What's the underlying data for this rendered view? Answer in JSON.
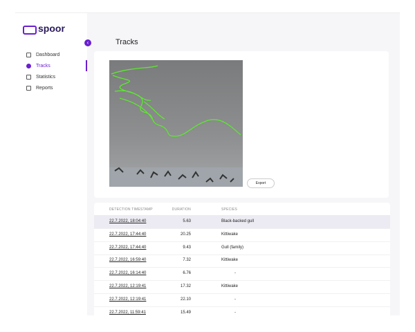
{
  "sidebar": {
    "logo": "spoor",
    "nav": [
      "Dashboard",
      "Tracks",
      "Statistics",
      "Reports"
    ]
  },
  "header": {
    "title": "Tracks"
  },
  "preview": {
    "button": "Export"
  },
  "table": {
    "columns": [
      "DETECTION TIMESTAMP",
      "DURATION",
      "SPECIES"
    ],
    "rows": [
      [
        "22.7.2022, 18:04:40",
        "5.63",
        "Black-backed gull"
      ],
      [
        "22.7.2022, 17:44:40",
        "20.25",
        "Kittiwake"
      ],
      [
        "22.7.2022, 17:44:40",
        "9.43",
        "Gull (family)"
      ],
      [
        "22.7.2022, 16:59:40",
        "7.32",
        "Kittiwake"
      ],
      [
        "22.7.2022, 16:14:40",
        "6.76",
        "-"
      ],
      [
        "22.7.2022, 12:19:41",
        "17.32",
        "Kittiwake"
      ],
      [
        "22.7.2022, 12:19:41",
        "22.10",
        "-"
      ],
      [
        "22.7.2022, 11:59:41",
        "15.49",
        "-"
      ]
    ]
  }
}
